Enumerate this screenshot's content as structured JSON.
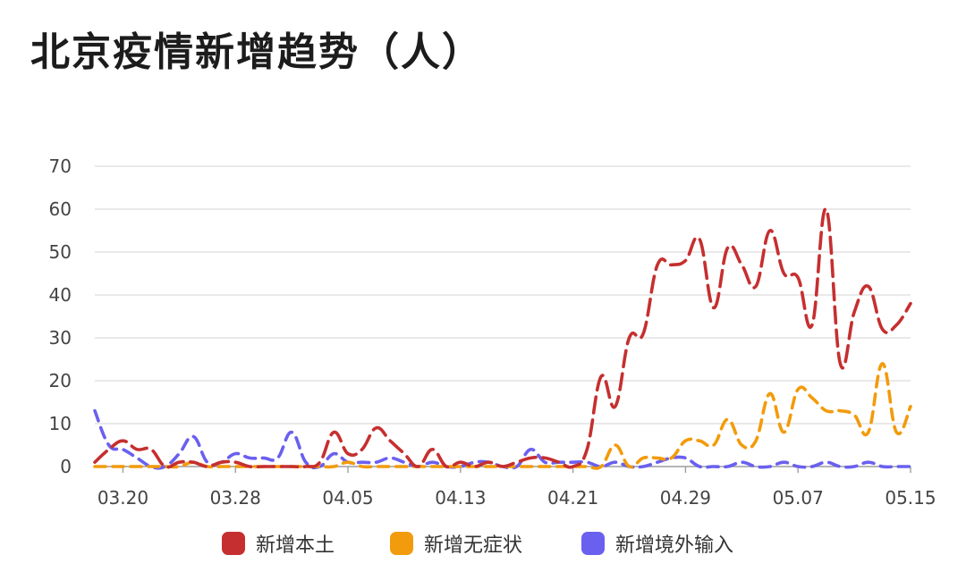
{
  "chart_data": {
    "type": "line",
    "title": "北京疫情新增趋势（人）",
    "xlabel": "",
    "ylabel": "",
    "ylim": [
      0,
      70
    ],
    "yticks": [
      0,
      10,
      20,
      30,
      40,
      50,
      60,
      70
    ],
    "xticks": [
      "03.20",
      "03.28",
      "04.05",
      "04.13",
      "04.21",
      "04.29",
      "05.07",
      "05.15"
    ],
    "x": [
      "03.18",
      "03.19",
      "03.20",
      "03.21",
      "03.22",
      "03.23",
      "03.24",
      "03.25",
      "03.26",
      "03.27",
      "03.28",
      "03.29",
      "03.30",
      "03.31",
      "04.01",
      "04.02",
      "04.03",
      "04.04",
      "04.05",
      "04.06",
      "04.07",
      "04.08",
      "04.09",
      "04.10",
      "04.11",
      "04.12",
      "04.13",
      "04.14",
      "04.15",
      "04.16",
      "04.17",
      "04.18",
      "04.19",
      "04.20",
      "04.21",
      "04.22",
      "04.23",
      "04.24",
      "04.25",
      "04.26",
      "04.27",
      "04.28",
      "04.29",
      "04.30",
      "05.01",
      "05.02",
      "05.03",
      "05.04",
      "05.05",
      "05.06",
      "05.07",
      "05.08",
      "05.09",
      "05.10",
      "05.11",
      "05.12",
      "05.13",
      "05.14",
      "05.15"
    ],
    "grid": true,
    "legend_position": "bottom",
    "series": [
      {
        "name": "新增本土",
        "color": "#c62f2f",
        "values": [
          1,
          4,
          6,
          4,
          4,
          0,
          1,
          1,
          0,
          1,
          1,
          0,
          0,
          0,
          0,
          0,
          1,
          8,
          3,
          4,
          9,
          6,
          3,
          0,
          4,
          0,
          1,
          0,
          1,
          0,
          1,
          2,
          2,
          1,
          0,
          4,
          21,
          14,
          30,
          31,
          47,
          47,
          48,
          53,
          37,
          51,
          47,
          42,
          55,
          45,
          44,
          33,
          60,
          24,
          36,
          42,
          32,
          33,
          38
        ],
        "dash": "18,8"
      },
      {
        "name": "新增无症状",
        "color": "#f29b0c",
        "values": [
          0,
          0,
          0,
          0,
          0,
          0,
          0,
          1,
          0,
          0,
          0,
          0,
          0,
          0,
          0,
          0,
          0,
          0,
          1,
          0,
          0,
          0,
          0,
          0,
          0,
          0,
          0,
          0,
          0,
          0,
          0,
          0,
          0,
          0,
          0,
          0,
          0,
          5,
          0,
          2,
          2,
          2,
          6,
          6,
          5,
          11,
          5,
          6,
          17,
          8,
          18,
          16,
          13,
          13,
          12,
          8,
          24,
          8,
          14
        ],
        "dash": "12,8"
      },
      {
        "name": "新增境外输入",
        "color": "#6a60ef",
        "values": [
          13,
          5,
          4,
          2,
          0,
          0,
          3,
          7,
          1,
          1,
          3,
          2,
          2,
          2,
          8,
          1,
          0,
          3,
          1,
          1,
          1,
          2,
          1,
          0,
          1,
          0,
          0,
          1,
          1,
          0,
          0,
          4,
          1,
          1,
          1,
          1,
          0,
          1,
          0,
          0,
          1,
          2,
          2,
          0,
          0,
          0,
          1,
          0,
          0,
          1,
          0,
          0,
          1,
          0,
          0,
          1,
          0,
          0,
          0
        ],
        "dash": "12,8"
      }
    ]
  }
}
